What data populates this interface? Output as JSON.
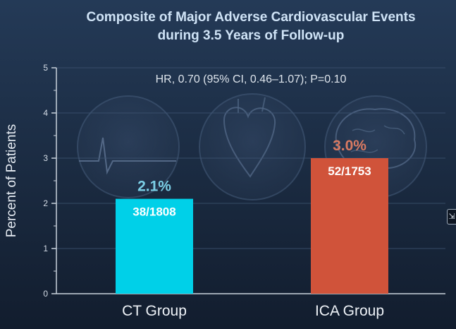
{
  "chart_data": {
    "type": "bar",
    "title_lines": [
      "Composite of Major Adverse Cardiovascular Events",
      "during 3.5 Years of Follow-up"
    ],
    "subtitle": "HR, 0.70 (95% CI, 0.46–1.07); P=0.10",
    "ylabel": "Percent of Patients",
    "xlabel": "",
    "ylim": [
      0,
      5
    ],
    "yticks": [
      0,
      1,
      2,
      3,
      4,
      5
    ],
    "grid": true,
    "categories": [
      "CT Group",
      "ICA Group"
    ],
    "values": [
      2.1,
      3.0
    ],
    "value_labels": [
      "2.1%",
      "3.0%"
    ],
    "count_labels": [
      "38/1808",
      "52/1753"
    ],
    "colors": {
      "bars": [
        "#00d0e8",
        "#d0533a"
      ],
      "value_labels": [
        "#7ccfe6",
        "#d97a62"
      ],
      "title": "#cfe3f6",
      "text": "#e6ecf3"
    },
    "background_icons": [
      "ecg-icon",
      "heart-icon",
      "brain-icon"
    ]
  },
  "ui": {
    "edge_icon_name": "expand-arrow-icon",
    "edge_icon_glyph": "⇲"
  }
}
